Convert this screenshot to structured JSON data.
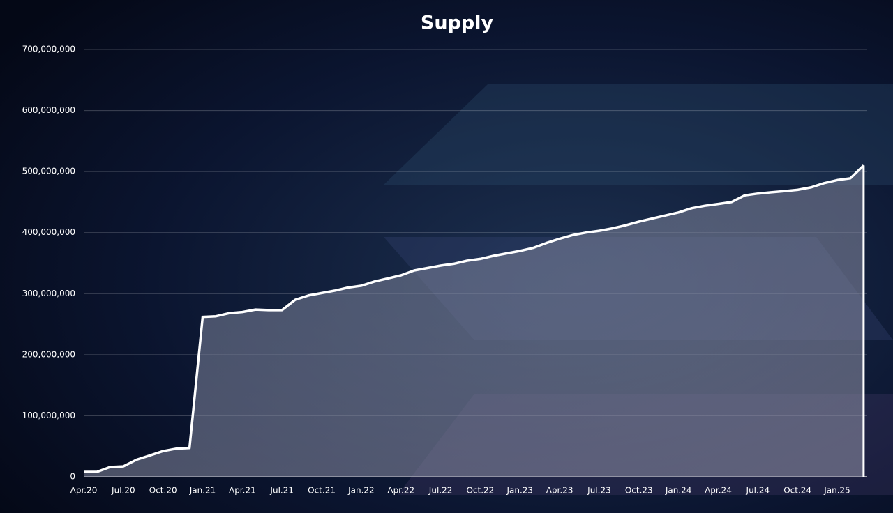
{
  "chart_data": {
    "type": "area",
    "title": "Supply",
    "categories": [
      "Apr.20",
      null,
      null,
      "Jul.20",
      null,
      null,
      "Oct.20",
      null,
      null,
      "Jan.21",
      null,
      null,
      "Apr.21",
      null,
      null,
      "Jul.21",
      null,
      null,
      "Oct.21",
      null,
      null,
      "Jan.22",
      null,
      null,
      "Apr.22",
      null,
      null,
      "Jul.22",
      null,
      null,
      "Oct.22",
      null,
      null,
      "Jan.23",
      null,
      null,
      "Apr.23",
      null,
      null,
      "Jul.23",
      null,
      null,
      "Oct.23",
      null,
      null,
      "Jan.24",
      null,
      null,
      "Apr.24",
      null,
      null,
      "Jul.24",
      null,
      null,
      "Oct.24",
      null,
      null,
      "Jan.25",
      null,
      null
    ],
    "values": [
      8000000,
      8000000,
      16000000,
      17000000,
      28000000,
      35000000,
      42000000,
      46000000,
      47000000,
      262000000,
      263000000,
      268000000,
      270000000,
      274000000,
      273000000,
      273000000,
      290000000,
      297000000,
      301000000,
      305000000,
      310000000,
      313000000,
      320000000,
      325000000,
      330000000,
      338000000,
      342000000,
      346000000,
      349000000,
      354000000,
      357000000,
      362000000,
      366000000,
      370000000,
      375000000,
      383000000,
      390000000,
      396000000,
      400000000,
      403000000,
      407000000,
      412000000,
      418000000,
      423000000,
      428000000,
      433000000,
      440000000,
      444000000,
      447000000,
      450000000,
      461000000,
      464000000,
      466000000,
      468000000,
      470000000,
      474000000,
      481000000,
      486000000,
      489000000,
      510000000
    ],
    "color": "#ffffff",
    "ylim": [
      0,
      700000000
    ],
    "yticks": [
      0,
      {
        "value": 100000000,
        "label": "100,000,000"
      },
      {
        "value": 200000000,
        "label": "200,000,000"
      },
      {
        "value": 300000000,
        "label": "300,000,000"
      },
      {
        "value": 400000000,
        "label": "400,000,000"
      },
      {
        "value": 500000000,
        "label": "500,000,000"
      },
      {
        "value": 600000000,
        "label": "600,000,000"
      },
      {
        "value": 700000000,
        "label": "700,000,000"
      }
    ],
    "grid": true
  }
}
